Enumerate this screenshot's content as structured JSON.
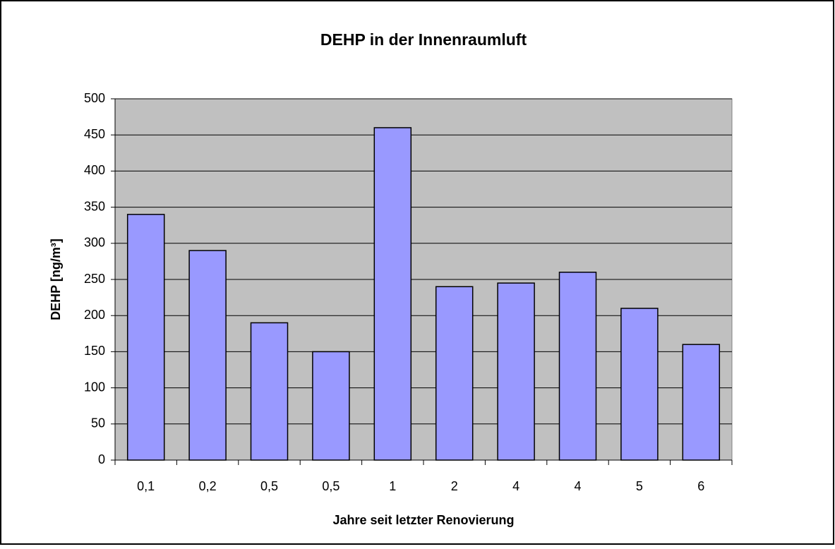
{
  "chart_data": {
    "type": "bar",
    "title": "DEHP in der Innenraumluft",
    "x_label": "Jahre seit letzter Renovierung",
    "y_label": "DEHP [ng/m³]",
    "categories": [
      "0,1",
      "0,2",
      "0,5",
      "0,5",
      "1",
      "2",
      "4",
      "4",
      "5",
      "6"
    ],
    "values": [
      340,
      290,
      190,
      150,
      460,
      240,
      245,
      260,
      210,
      160
    ],
    "color": "#9999ff",
    "ylim": [
      0,
      500
    ],
    "yticks": [
      0,
      50,
      100,
      150,
      200,
      250,
      300,
      350,
      400,
      450,
      500
    ],
    "grid": true
  }
}
